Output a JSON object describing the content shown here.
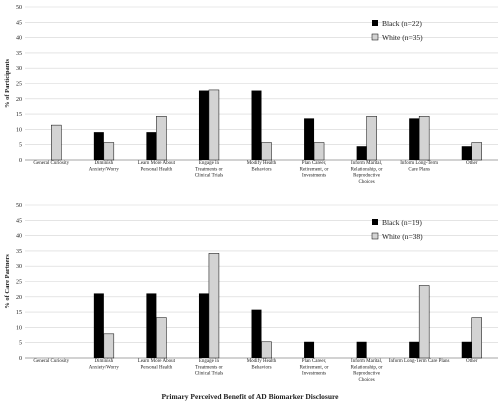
{
  "chart_data": [
    {
      "type": "bar",
      "ylabel": "% of Participants",
      "xlabel": "",
      "ylim": [
        0,
        50
      ],
      "yticks": [
        0,
        5,
        10,
        15,
        20,
        25,
        30,
        35,
        40,
        45,
        50
      ],
      "grid": true,
      "legend_position": "top-right",
      "categories": [
        [
          "General Curiosity"
        ],
        [
          "Diminish",
          "Anxiety/Worry"
        ],
        [
          "Learn More About",
          "Personal Health"
        ],
        [
          "Engage in",
          "Treatments or",
          "Clinical Trials"
        ],
        [
          "Modify Health",
          "Behaviors"
        ],
        [
          "Plan Career,",
          "Retirement, or",
          "Investments"
        ],
        [
          "Inform Marital,",
          "Relationship, or",
          "Reproductive",
          "Choices"
        ],
        [
          "Inform Long-Term",
          "Care Plans"
        ],
        [
          "Other"
        ]
      ],
      "series": [
        {
          "name": "Black (n=22)",
          "color": "#000000",
          "values": [
            0,
            9.1,
            9.1,
            22.7,
            22.7,
            13.6,
            4.5,
            13.6,
            4.5
          ]
        },
        {
          "name": "White (n=35)",
          "color": "#d3d3d3",
          "values": [
            11.4,
            5.7,
            14.3,
            22.9,
            5.7,
            5.7,
            14.3,
            14.3,
            5.7
          ]
        }
      ]
    },
    {
      "type": "bar",
      "ylabel": "% of Care Partners",
      "xlabel": "Primary Perceived Benefit of AD Biomarker Disclosure",
      "ylim": [
        0,
        50
      ],
      "yticks": [
        0,
        5,
        10,
        15,
        20,
        25,
        30,
        35,
        40,
        45,
        50
      ],
      "grid": true,
      "legend_position": "top-right",
      "categories": [
        [
          "General Curiosity"
        ],
        [
          "Diminish",
          "Anxiety/Worry"
        ],
        [
          "Learn More About",
          "Personal Health"
        ],
        [
          "Engage in",
          "Treatments or",
          "Clinical Trials"
        ],
        [
          "Modify Health",
          "Behaviors"
        ],
        [
          "Plan Career,",
          "Retirement, or",
          "Investments"
        ],
        [
          "Inform Marital,",
          "Relationship, or",
          "Reproductive",
          "Choices"
        ],
        [
          "Inform Long-Term Care Plans"
        ],
        [
          "Other"
        ]
      ],
      "series": [
        {
          "name": "Black (n=19)",
          "color": "#000000",
          "values": [
            0,
            21.1,
            21.1,
            21.1,
            15.8,
            5.3,
            5.3,
            5.3,
            5.3
          ]
        },
        {
          "name": "White (n=38)",
          "color": "#d3d3d3",
          "values": [
            0,
            7.9,
            13.2,
            34.2,
            5.3,
            0,
            0,
            23.7,
            13.2
          ]
        }
      ]
    }
  ]
}
